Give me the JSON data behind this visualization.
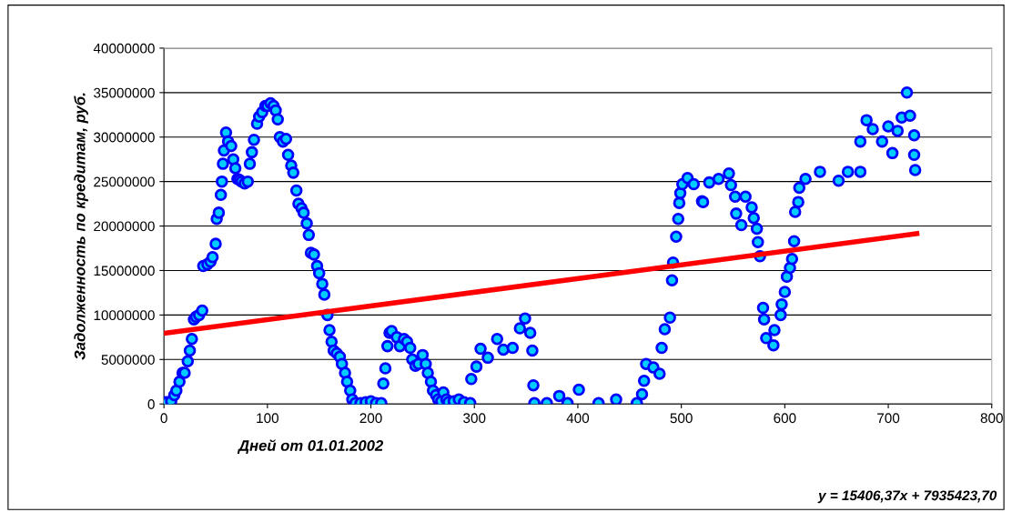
{
  "chart_data": {
    "type": "scatter",
    "xlabel": "Дней от 01.01.2002",
    "ylabel": "Задолженность по кредитам, руб.",
    "annotations": [
      "y = 15406,37x + 7935423,70"
    ],
    "xlim": [
      0,
      800
    ],
    "xticks": [
      0,
      100,
      200,
      300,
      400,
      500,
      600,
      700,
      800
    ],
    "ylim": [
      0,
      40000000
    ],
    "yticks": [
      0,
      5000000,
      10000000,
      15000000,
      20000000,
      25000000,
      30000000,
      35000000,
      40000000
    ],
    "grid": "y",
    "marker": "circle",
    "series": [
      {
        "color": "#00ccff",
        "x": [
          0,
          3,
          7,
          10,
          12,
          15,
          18,
          20,
          23,
          25,
          27,
          29,
          31,
          34,
          37,
          38,
          42,
          45,
          47,
          50,
          51,
          53,
          55,
          56,
          57,
          58,
          60,
          62,
          65,
          67,
          69,
          71,
          73,
          75,
          78,
          81,
          83,
          85,
          87,
          90,
          92,
          95,
          98,
          100,
          103,
          106,
          108,
          110,
          112,
          115,
          118,
          120,
          123,
          125,
          128,
          130,
          133,
          135,
          138,
          140,
          142,
          145,
          148,
          150,
          153,
          155,
          158,
          160,
          162,
          164,
          167,
          170,
          172,
          175,
          177,
          180,
          182,
          185,
          190,
          195,
          200,
          205,
          210,
          212,
          214,
          216,
          218,
          220,
          225,
          228,
          232,
          235,
          238,
          240,
          243,
          246,
          250,
          253,
          255,
          258,
          260,
          263,
          265,
          268,
          270,
          273,
          275,
          280,
          285,
          290,
          296,
          297,
          302,
          306,
          313,
          322,
          328,
          337,
          344,
          349,
          354,
          356,
          357,
          358,
          370,
          382,
          390,
          401,
          420,
          437,
          457,
          462,
          464,
          466,
          473,
          479,
          481,
          484,
          489,
          491,
          492,
          495,
          497,
          498,
          499,
          501,
          506,
          512,
          520,
          521,
          527,
          536,
          546,
          548,
          552,
          553,
          558,
          562,
          568,
          570,
          573,
          574,
          576,
          579,
          580,
          582,
          589,
          590,
          596,
          597,
          600,
          602,
          605,
          607,
          609,
          610,
          613,
          614,
          620,
          634,
          652,
          661,
          673,
          673,
          679,
          685,
          694,
          700,
          704,
          709,
          713,
          718,
          721,
          725,
          725,
          726
        ],
        "values": [
          200000,
          200000,
          300000,
          1000000,
          1500000,
          2500000,
          3500000,
          3500000,
          4800000,
          6000000,
          7300000,
          9500000,
          9800000,
          10000000,
          10500000,
          15500000,
          15700000,
          16000000,
          16500000,
          18000000,
          20800000,
          21500000,
          23500000,
          25000000,
          27000000,
          28500000,
          30500000,
          29500000,
          29000000,
          27500000,
          26500000,
          25300000,
          25200000,
          25000000,
          24800000,
          25000000,
          27000000,
          28300000,
          29700000,
          31500000,
          32300000,
          32800000,
          33500000,
          33500000,
          33800000,
          33500000,
          33000000,
          32000000,
          30000000,
          29500000,
          29800000,
          28000000,
          26800000,
          26000000,
          24000000,
          22500000,
          22000000,
          21500000,
          20300000,
          19000000,
          17000000,
          16800000,
          15500000,
          14700000,
          13500000,
          12300000,
          10000000,
          8300000,
          7000000,
          6000000,
          5700000,
          5300000,
          4500000,
          3500000,
          2500000,
          1500000,
          500000,
          100000,
          100000,
          200000,
          300000,
          100000,
          100000,
          2300000,
          4000000,
          6500000,
          8000000,
          8200000,
          7500000,
          6500000,
          7300000,
          7000000,
          6300000,
          5000000,
          4300000,
          4500000,
          5500000,
          4500000,
          3500000,
          2500000,
          1500000,
          1000000,
          500000,
          300000,
          1300000,
          500000,
          200000,
          300000,
          500000,
          200000,
          100000,
          2800000,
          4200000,
          6200000,
          5200000,
          7300000,
          6100000,
          6300000,
          8500000,
          9600000,
          8000000,
          6000000,
          2100000,
          100000,
          100000,
          900000,
          100000,
          1600000,
          100000,
          500000,
          100000,
          1100000,
          2600000,
          4500000,
          4100000,
          3400000,
          6300000,
          8400000,
          9700000,
          13900000,
          15900000,
          18800000,
          20800000,
          22600000,
          23700000,
          24700000,
          25400000,
          24700000,
          22800000,
          22700000,
          24900000,
          25300000,
          25900000,
          24600000,
          23300000,
          21400000,
          20100000,
          23300000,
          22100000,
          20900000,
          19700000,
          18200000,
          16600000,
          10800000,
          9500000,
          7400000,
          6600000,
          8300000,
          10000000,
          11200000,
          12600000,
          14300000,
          15300000,
          16300000,
          18300000,
          21600000,
          22700000,
          24300000,
          25300000,
          26100000,
          25100000,
          26100000,
          26100000,
          29500000,
          31900000,
          30900000,
          29500000,
          31200000,
          28200000,
          30700000,
          32200000,
          35000000,
          32400000,
          30200000,
          28000000,
          26300000
        ]
      },
      {
        "type": "line",
        "color": "#ff0000",
        "marker": "none",
        "x": [
          0,
          730
        ],
        "values": [
          7940000,
          19180000
        ]
      }
    ]
  }
}
